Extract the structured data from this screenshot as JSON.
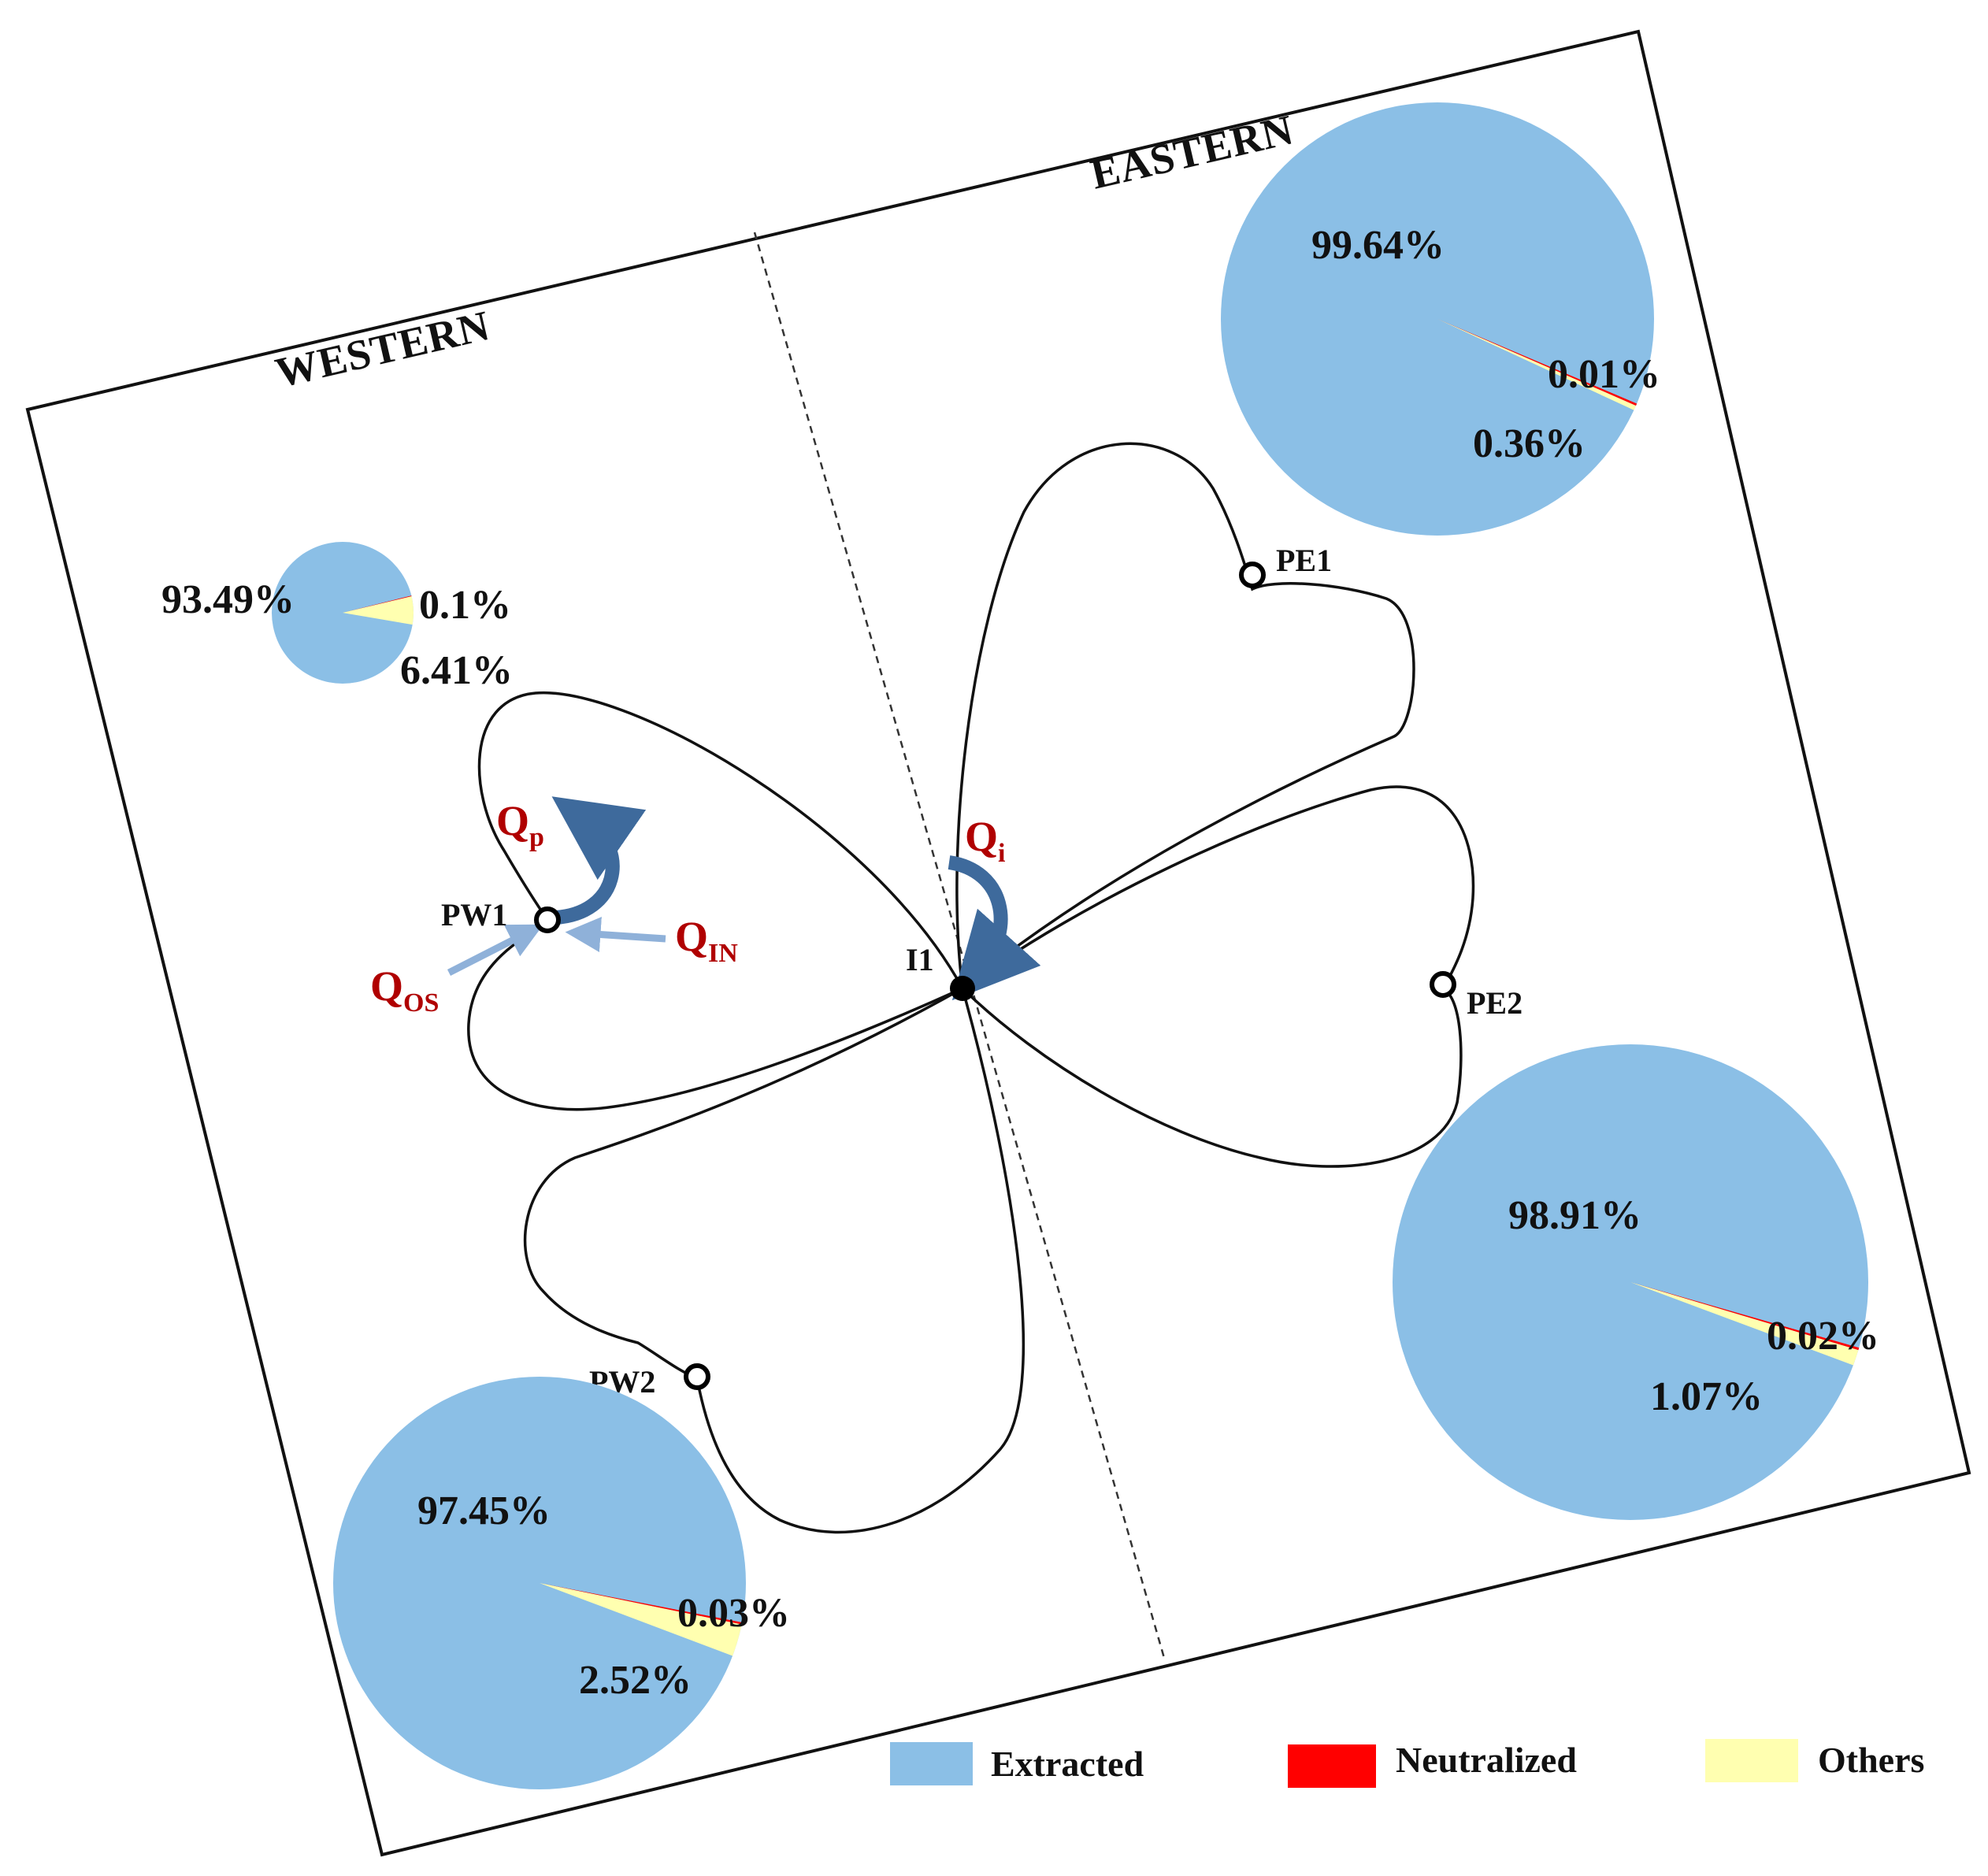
{
  "regions": {
    "western": "WESTERN",
    "eastern": "EASTERN"
  },
  "wells": {
    "injector": "I1",
    "pw1": "PW1",
    "pw2": "PW2",
    "pe1": "PE1",
    "pe2": "PE2"
  },
  "flows": {
    "qp": {
      "main": "Q",
      "sub": "p"
    },
    "qi": {
      "main": "Q",
      "sub": "i"
    },
    "qin": {
      "main": "Q",
      "sub": "IN"
    },
    "qos": {
      "main": "Q",
      "sub": "OS"
    }
  },
  "colors": {
    "extracted": "#8bbfe6",
    "neutralized": "#ff0000",
    "others": "#ffffb0",
    "flow_arrow_dark": "#3e6a9c",
    "flow_arrow_light": "#8fb1d9",
    "flow_label": "#b00000"
  },
  "legend": {
    "extracted": "Extracted",
    "neutralized": "Neutralized",
    "others": "Others"
  },
  "chart_data": [
    {
      "type": "pie",
      "well": "PW1",
      "categories": [
        "Extracted",
        "Neutralized",
        "Others"
      ],
      "values": [
        93.49,
        0.1,
        6.41
      ],
      "labels": [
        "93.49%",
        "0.1%",
        "6.41%"
      ]
    },
    {
      "type": "pie",
      "well": "PE1",
      "categories": [
        "Extracted",
        "Neutralized",
        "Others"
      ],
      "values": [
        99.64,
        0.01,
        0.36
      ],
      "labels": [
        "99.64%",
        "0.01%",
        "0.36%"
      ]
    },
    {
      "type": "pie",
      "well": "PW2",
      "categories": [
        "Extracted",
        "Neutralized",
        "Others"
      ],
      "values": [
        97.45,
        0.03,
        2.52
      ],
      "labels": [
        "97.45%",
        "0.03%",
        "2.52%"
      ]
    },
    {
      "type": "pie",
      "well": "PE2",
      "categories": [
        "Extracted",
        "Neutralized",
        "Others"
      ],
      "values": [
        98.91,
        0.02,
        1.07
      ],
      "labels": [
        "98.91%",
        "0.02%",
        "1.07%"
      ]
    }
  ]
}
